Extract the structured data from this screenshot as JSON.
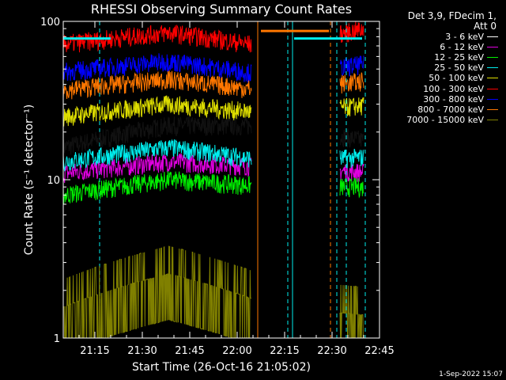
{
  "chart_data": {
    "type": "line",
    "title": "RHESSI Observing Summary Count Rates",
    "xlabel": "Start Time (26-Oct-16 21:05:02)",
    "ylabel": "Count Rate (s⁻¹ detector⁻¹)",
    "y_scale": "log",
    "ylim": [
      1,
      100
    ],
    "xlim_minutes": [
      5.0,
      105.0
    ],
    "y_ticks": [
      "1",
      "10",
      "100"
    ],
    "x_ticks": [
      {
        "label": "21:15",
        "minute": 15
      },
      {
        "label": "21:30",
        "minute": 30
      },
      {
        "label": "21:45",
        "minute": 45
      },
      {
        "label": "22:00",
        "minute": 60
      },
      {
        "label": "22:15",
        "minute": 75
      },
      {
        "label": "22:30",
        "minute": 90
      },
      {
        "label": "22:45",
        "minute": 105
      }
    ],
    "segments_minutes": [
      [
        5.0,
        64.5
      ],
      [
        92.5,
        100.0
      ]
    ],
    "series": [
      {
        "name": "3 - 6 keV",
        "color": "#000000",
        "values": [
          16,
          22,
          22,
          17
        ]
      },
      {
        "name": "6 - 12 keV",
        "color": "#e000e0",
        "values": [
          11,
          13,
          12,
          11
        ]
      },
      {
        "name": "12 - 25 keV",
        "color": "#00ee00",
        "values": [
          8,
          10,
          9,
          9
        ]
      },
      {
        "name": "25 - 50 keV",
        "color": "#00eeee",
        "values": [
          13,
          16,
          13,
          14
        ]
      },
      {
        "name": "50 - 100 keV",
        "color": "#dddd00",
        "values": [
          25,
          30,
          26,
          30
        ]
      },
      {
        "name": "100 - 300 keV",
        "color": "#ff0000",
        "values": [
          72,
          85,
          68,
          93
        ]
      },
      {
        "name": "300 - 800 keV",
        "color": "#0000ff",
        "values": [
          48,
          56,
          45,
          55
        ]
      },
      {
        "name": "800 - 7000 keV",
        "color": "#ff7700",
        "values": [
          37,
          43,
          36,
          43
        ]
      },
      {
        "name": "7000 - 15000 keV",
        "color": "#808000",
        "values": [
          1.6,
          2.6,
          1.6,
          1.4
        ]
      }
    ],
    "attenuator_lines_minutes": [
      5.0,
      16.5,
      76.0,
      91.5
    ],
    "vertical_markers_minutes": [
      [
        66.5,
        "#ff7700"
      ],
      [
        77.5,
        "#00eeee"
      ],
      [
        89.5,
        "#ff7700"
      ],
      [
        94.5,
        "#00eeee"
      ],
      [
        100.5,
        "#00eeee"
      ]
    ],
    "flag_bars": [
      {
        "color": "#00eeee",
        "from_minute": 5.0,
        "to_minute": 20.0,
        "value": 78
      },
      {
        "color": "#ff7700",
        "from_minute": 67.5,
        "to_minute": 89.0,
        "value": 87
      },
      {
        "color": "#00eeee",
        "from_minute": 78.0,
        "to_minute": 99.5,
        "value": 78
      }
    ]
  },
  "legend": {
    "header": [
      "Det 3,9, FDecim 1,",
      "Att 0"
    ]
  },
  "timestamp": "1-Sep-2022 15:07"
}
